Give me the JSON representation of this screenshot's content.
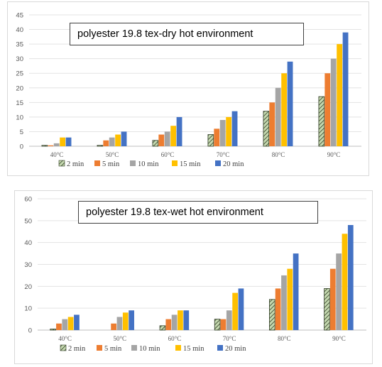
{
  "colors": {
    "2 min": "#a9c38f",
    "5 min": "#ed7d31",
    "10 min": "#a5a5a5",
    "15 min": "#ffc000",
    "20 min": "#4472c4"
  },
  "chart_data": [
    {
      "type": "bar",
      "title": "polyester 19.8 tex-dry hot environment",
      "categories": [
        "40°C",
        "50°C",
        "60°C",
        "70°C",
        "80°C",
        "90°C"
      ],
      "ylim": [
        0,
        45
      ],
      "yticks": [
        0,
        5,
        10,
        15,
        20,
        25,
        30,
        35,
        40,
        45
      ],
      "grid": true,
      "legend_position": "bottom",
      "series": [
        {
          "name": "2 min",
          "values": [
            0.3,
            0.3,
            2,
            4,
            12,
            17
          ]
        },
        {
          "name": "5 min",
          "values": [
            0.3,
            2,
            4,
            6,
            15,
            25
          ]
        },
        {
          "name": "10 min",
          "values": [
            1,
            3,
            5,
            9,
            20,
            30
          ]
        },
        {
          "name": "15 min",
          "values": [
            3,
            4,
            7,
            10,
            25,
            35
          ]
        },
        {
          "name": "20 min",
          "values": [
            3,
            5,
            10,
            12,
            29,
            39
          ]
        }
      ]
    },
    {
      "type": "bar",
      "title": "polyester 19.8 tex-wet hot environment",
      "categories": [
        "40°C",
        "50°C",
        "60°C",
        "70°C",
        "80°C",
        "90°C"
      ],
      "ylim": [
        0,
        60
      ],
      "yticks": [
        0,
        10,
        20,
        30,
        40,
        50,
        60
      ],
      "grid": true,
      "legend_position": "bottom",
      "series": [
        {
          "name": "2 min",
          "values": [
            0.5,
            0,
            2,
            5,
            14,
            19
          ]
        },
        {
          "name": "5 min",
          "values": [
            3,
            3,
            5,
            5,
            19,
            28
          ]
        },
        {
          "name": "10 min",
          "values": [
            5,
            6,
            7,
            9,
            25,
            35
          ]
        },
        {
          "name": "15 min",
          "values": [
            6,
            8,
            9,
            17,
            28,
            44
          ]
        },
        {
          "name": "20 min",
          "values": [
            7,
            9,
            9,
            19,
            35,
            48
          ]
        }
      ]
    }
  ]
}
